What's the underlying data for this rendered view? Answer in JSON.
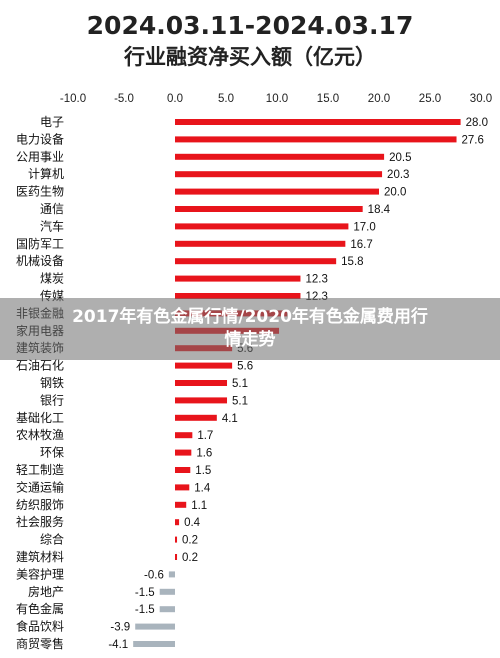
{
  "chart_data": {
    "type": "bar",
    "orientation": "horizontal",
    "title_line1": "2024.03.11-2024.03.17",
    "title_line2": "行业融资净买入额（亿元）",
    "xlim": [
      -10,
      30
    ],
    "xticks": [
      "-10.0",
      "-5.0",
      "0.0",
      "5.0",
      "10.0",
      "15.0",
      "20.0",
      "25.0",
      "30.0"
    ],
    "grid": false,
    "colors": {
      "positive": "#e8141b",
      "negative": "#a9b4bd"
    },
    "categories": [
      "电子",
      "电力设备",
      "公用事业",
      "计算机",
      "医药生物",
      "通信",
      "汽车",
      "国防军工",
      "机械设备",
      "煤炭",
      "传媒",
      "非银金融",
      "家用电器",
      "建筑装饰",
      "石油石化",
      "钢铁",
      "银行",
      "基础化工",
      "农林牧渔",
      "环保",
      "轻工制造",
      "交通运输",
      "纺织服饰",
      "社会服务",
      "综合",
      "建筑材料",
      "美容护理",
      "房地产",
      "有色金属",
      "食品饮料",
      "商贸零售"
    ],
    "values": [
      28.0,
      27.6,
      20.5,
      20.3,
      20.0,
      18.4,
      17.0,
      16.7,
      15.8,
      12.3,
      12.3,
      11.0,
      10.2,
      5.6,
      5.6,
      5.1,
      5.1,
      4.1,
      1.7,
      1.6,
      1.5,
      1.4,
      1.1,
      0.4,
      0.2,
      0.2,
      -0.6,
      -1.5,
      -1.5,
      -3.9,
      -4.1
    ],
    "labels": [
      "28.0",
      "27.6",
      "20.5",
      "20.3",
      "20.0",
      "18.4",
      "17.0",
      "16.7",
      "15.8",
      "12.3",
      "12.3",
      "",
      "",
      "5.6",
      "5.6",
      "5.1",
      "5.1",
      "4.1",
      "1.7",
      "1.6",
      "1.5",
      "1.4",
      "1.1",
      "0.4",
      "0.2",
      "0.2",
      "-0.6",
      "-1.5",
      "-1.5",
      "-3.9",
      "-4.1"
    ]
  },
  "overlay": {
    "text": "2017年有色金属行情/2020年有色金属费用行情走势"
  }
}
